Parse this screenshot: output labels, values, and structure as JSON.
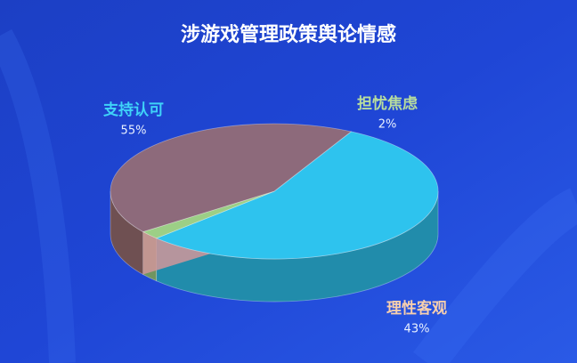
{
  "chart_data": {
    "type": "pie3d",
    "title": "涉游戏管理政策舆论情感",
    "categories": [
      "支持认可",
      "担忧焦虑",
      "理性客观"
    ],
    "values": [
      55,
      2,
      43
    ],
    "value_labels": [
      "55%",
      "2%",
      "43%"
    ],
    "colors": [
      "#2ec3ee",
      "#9ccf86",
      "#9a6f72"
    ]
  }
}
